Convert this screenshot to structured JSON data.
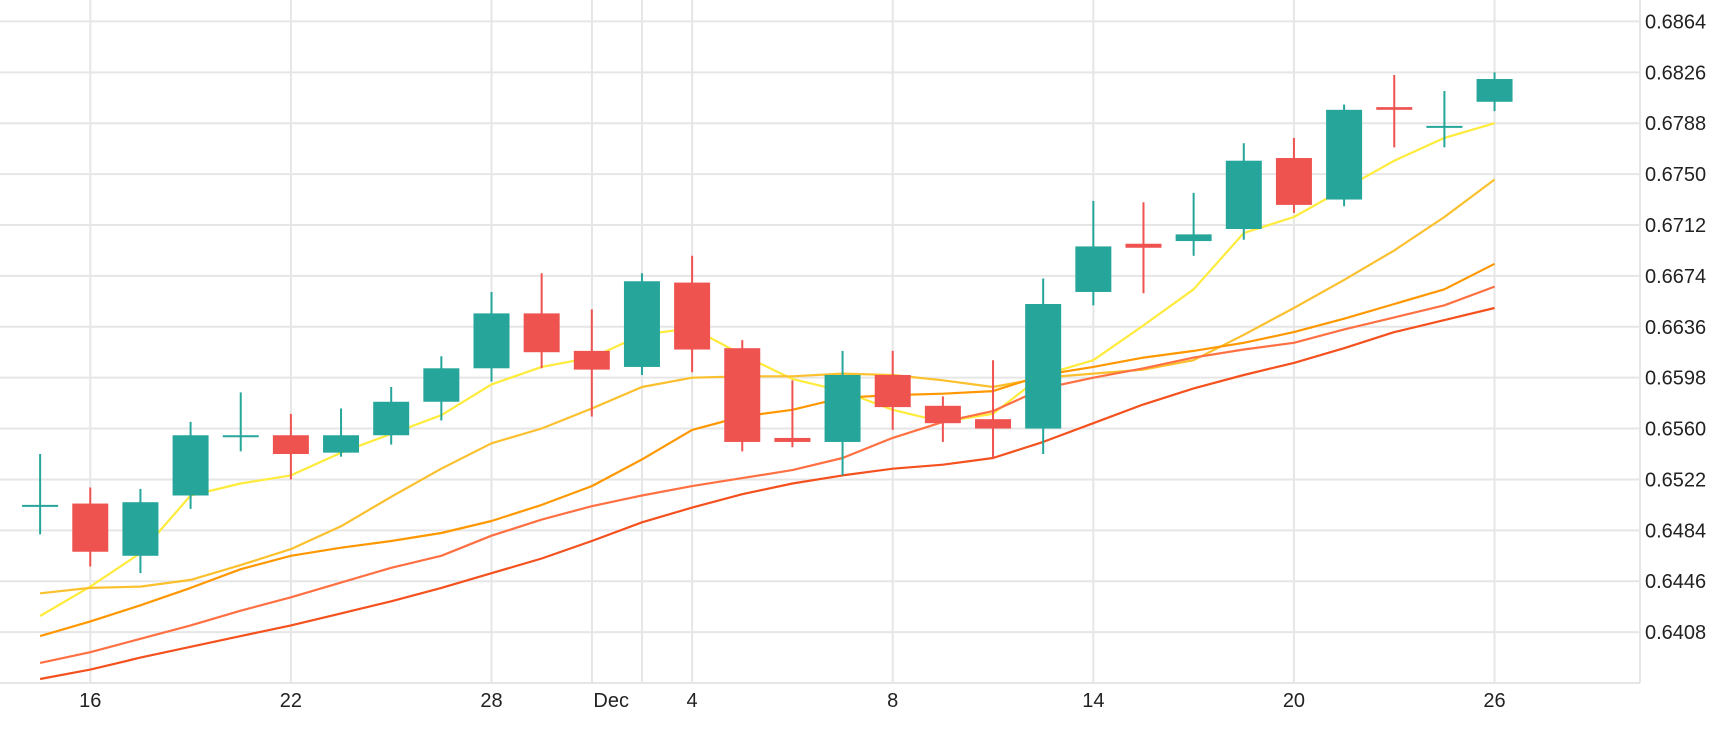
{
  "chart_data": {
    "type": "candlestick",
    "title": "",
    "xlabel": "",
    "ylabel": "",
    "x_range": [
      -0.8,
      31.9
    ],
    "y_range": [
      0.637,
      0.688
    ],
    "grid": true,
    "y_axis_side": "right",
    "y_ticks": [
      "0.6408",
      "0.6446",
      "0.6484",
      "0.6522",
      "0.6560",
      "0.6598",
      "0.6636",
      "0.6674",
      "0.6712",
      "0.6750",
      "0.6788",
      "0.6826",
      "0.6864"
    ],
    "x_ticks": [
      {
        "index": 1,
        "label": "16"
      },
      {
        "index": 5,
        "label": "22"
      },
      {
        "index": 9,
        "label": "28"
      },
      {
        "index": 12,
        "label": "Dec"
      },
      {
        "index": 13,
        "label": "4"
      },
      {
        "index": 17,
        "label": "8"
      },
      {
        "index": 21,
        "label": "14"
      },
      {
        "index": 25,
        "label": "20"
      },
      {
        "index": 29,
        "label": "26"
      }
    ],
    "colors": {
      "up": "#26a69a",
      "down": "#ef5350",
      "grid": "#e6e6e6",
      "text": "#222222"
    },
    "candles": [
      {
        "i": 0,
        "o": 0.6503,
        "h": 0.6541,
        "l": 0.6481,
        "c": 0.6503
      },
      {
        "i": 1,
        "o": 0.6504,
        "h": 0.6516,
        "l": 0.6457,
        "c": 0.6468
      },
      {
        "i": 2,
        "o": 0.6465,
        "h": 0.6515,
        "l": 0.6452,
        "c": 0.6505
      },
      {
        "i": 3,
        "o": 0.651,
        "h": 0.6565,
        "l": 0.65,
        "c": 0.6555
      },
      {
        "i": 4,
        "o": 0.6555,
        "h": 0.6587,
        "l": 0.6543,
        "c": 0.6555
      },
      {
        "i": 5,
        "o": 0.6555,
        "h": 0.6571,
        "l": 0.6522,
        "c": 0.6541
      },
      {
        "i": 6,
        "o": 0.6542,
        "h": 0.6575,
        "l": 0.6539,
        "c": 0.6555
      },
      {
        "i": 7,
        "o": 0.6555,
        "h": 0.6591,
        "l": 0.6548,
        "c": 0.658
      },
      {
        "i": 8,
        "o": 0.658,
        "h": 0.6614,
        "l": 0.6566,
        "c": 0.6605
      },
      {
        "i": 9,
        "o": 0.6605,
        "h": 0.6662,
        "l": 0.6595,
        "c": 0.6646
      },
      {
        "i": 10,
        "o": 0.6646,
        "h": 0.6676,
        "l": 0.6605,
        "c": 0.6617
      },
      {
        "i": 11,
        "o": 0.6618,
        "h": 0.6649,
        "l": 0.6569,
        "c": 0.6604
      },
      {
        "i": 12,
        "o": 0.6606,
        "h": 0.6676,
        "l": 0.66,
        "c": 0.667
      },
      {
        "i": 13,
        "o": 0.6669,
        "h": 0.6689,
        "l": 0.6602,
        "c": 0.6619
      },
      {
        "i": 14,
        "o": 0.662,
        "h": 0.6626,
        "l": 0.6543,
        "c": 0.655
      },
      {
        "i": 15,
        "o": 0.6553,
        "h": 0.6596,
        "l": 0.6546,
        "c": 0.655
      },
      {
        "i": 16,
        "o": 0.655,
        "h": 0.6618,
        "l": 0.6525,
        "c": 0.66
      },
      {
        "i": 17,
        "o": 0.66,
        "h": 0.6618,
        "l": 0.6559,
        "c": 0.6576
      },
      {
        "i": 18,
        "o": 0.6577,
        "h": 0.6584,
        "l": 0.655,
        "c": 0.6564
      },
      {
        "i": 19,
        "o": 0.6567,
        "h": 0.6611,
        "l": 0.6538,
        "c": 0.656
      },
      {
        "i": 20,
        "o": 0.656,
        "h": 0.6672,
        "l": 0.6541,
        "c": 0.6653
      },
      {
        "i": 21,
        "o": 0.6662,
        "h": 0.673,
        "l": 0.6652,
        "c": 0.6696
      },
      {
        "i": 22,
        "o": 0.6698,
        "h": 0.6729,
        "l": 0.6661,
        "c": 0.6695
      },
      {
        "i": 23,
        "o": 0.67,
        "h": 0.6736,
        "l": 0.6689,
        "c": 0.6705
      },
      {
        "i": 24,
        "o": 0.6709,
        "h": 0.6773,
        "l": 0.6701,
        "c": 0.676
      },
      {
        "i": 25,
        "o": 0.6762,
        "h": 0.6777,
        "l": 0.6721,
        "c": 0.6727
      },
      {
        "i": 26,
        "o": 0.6731,
        "h": 0.6802,
        "l": 0.6726,
        "c": 0.6798
      },
      {
        "i": 27,
        "o": 0.68,
        "h": 0.6824,
        "l": 0.677,
        "c": 0.6798
      },
      {
        "i": 28,
        "o": 0.6786,
        "h": 0.6812,
        "l": 0.677,
        "c": 0.6786
      },
      {
        "i": 29,
        "o": 0.6804,
        "h": 0.6826,
        "l": 0.6797,
        "c": 0.6821
      }
    ],
    "moving_averages": [
      {
        "color": "#ffeb3b",
        "points": [
          [
            0,
            0.642
          ],
          [
            1,
            0.6442
          ],
          [
            2,
            0.6467
          ],
          [
            3,
            0.651
          ],
          [
            4,
            0.6519
          ],
          [
            5,
            0.6525
          ],
          [
            6,
            0.6542
          ],
          [
            7,
            0.6556
          ],
          [
            8,
            0.657
          ],
          [
            9,
            0.6593
          ],
          [
            10,
            0.6606
          ],
          [
            11,
            0.6613
          ],
          [
            12,
            0.663
          ],
          [
            13,
            0.6635
          ],
          [
            14,
            0.6615
          ],
          [
            15,
            0.6597
          ],
          [
            16,
            0.6588
          ],
          [
            17,
            0.6574
          ],
          [
            18,
            0.6565
          ],
          [
            19,
            0.6571
          ],
          [
            20,
            0.66
          ],
          [
            21,
            0.6611
          ],
          [
            22,
            0.6637
          ],
          [
            23,
            0.6664
          ],
          [
            24,
            0.6706
          ],
          [
            25,
            0.6718
          ],
          [
            26,
            0.6739
          ],
          [
            27,
            0.676
          ],
          [
            28,
            0.6777
          ],
          [
            29,
            0.6788
          ]
        ]
      },
      {
        "color": "#fbc02d",
        "points": [
          [
            0,
            0.6437
          ],
          [
            1,
            0.6441
          ],
          [
            2,
            0.6442
          ],
          [
            3,
            0.6447
          ],
          [
            4,
            0.6458
          ],
          [
            5,
            0.647
          ],
          [
            6,
            0.6487
          ],
          [
            7,
            0.6509
          ],
          [
            8,
            0.653
          ],
          [
            9,
            0.6549
          ],
          [
            10,
            0.656
          ],
          [
            11,
            0.6575
          ],
          [
            12,
            0.6591
          ],
          [
            13,
            0.6598
          ],
          [
            14,
            0.6599
          ],
          [
            15,
            0.6599
          ],
          [
            16,
            0.6601
          ],
          [
            17,
            0.66
          ],
          [
            18,
            0.6596
          ],
          [
            19,
            0.6591
          ],
          [
            20,
            0.6598
          ],
          [
            21,
            0.6601
          ],
          [
            22,
            0.6604
          ],
          [
            23,
            0.6611
          ],
          [
            24,
            0.663
          ],
          [
            25,
            0.665
          ],
          [
            26,
            0.6671
          ],
          [
            27,
            0.6693
          ],
          [
            28,
            0.6718
          ],
          [
            29,
            0.6746
          ]
        ]
      },
      {
        "color": "#ff9800",
        "points": [
          [
            0,
            0.6405
          ],
          [
            1,
            0.6416
          ],
          [
            2,
            0.6428
          ],
          [
            3,
            0.6441
          ],
          [
            4,
            0.6455
          ],
          [
            5,
            0.6465
          ],
          [
            6,
            0.6471
          ],
          [
            7,
            0.6476
          ],
          [
            8,
            0.6482
          ],
          [
            9,
            0.6491
          ],
          [
            10,
            0.6503
          ],
          [
            11,
            0.6517
          ],
          [
            12,
            0.6537
          ],
          [
            13,
            0.6559
          ],
          [
            14,
            0.6569
          ],
          [
            15,
            0.6574
          ],
          [
            16,
            0.6583
          ],
          [
            17,
            0.6585
          ],
          [
            18,
            0.6586
          ],
          [
            19,
            0.6588
          ],
          [
            20,
            0.66
          ],
          [
            21,
            0.6606
          ],
          [
            22,
            0.6613
          ],
          [
            23,
            0.6618
          ],
          [
            24,
            0.6624
          ],
          [
            25,
            0.6632
          ],
          [
            26,
            0.6642
          ],
          [
            27,
            0.6653
          ],
          [
            28,
            0.6664
          ],
          [
            29,
            0.6683
          ]
        ]
      },
      {
        "color": "#ff7043",
        "points": [
          [
            0,
            0.6385
          ],
          [
            1,
            0.6393
          ],
          [
            2,
            0.6403
          ],
          [
            3,
            0.6413
          ],
          [
            4,
            0.6424
          ],
          [
            5,
            0.6434
          ],
          [
            6,
            0.6445
          ],
          [
            7,
            0.6456
          ],
          [
            8,
            0.6465
          ],
          [
            9,
            0.648
          ],
          [
            10,
            0.6492
          ],
          [
            11,
            0.6502
          ],
          [
            12,
            0.651
          ],
          [
            13,
            0.6517
          ],
          [
            14,
            0.6523
          ],
          [
            15,
            0.6529
          ],
          [
            16,
            0.6538
          ],
          [
            17,
            0.6553
          ],
          [
            18,
            0.6565
          ],
          [
            19,
            0.6573
          ],
          [
            20,
            0.659
          ],
          [
            21,
            0.6598
          ],
          [
            22,
            0.6605
          ],
          [
            23,
            0.6613
          ],
          [
            24,
            0.6619
          ],
          [
            25,
            0.6624
          ],
          [
            26,
            0.6634
          ],
          [
            27,
            0.6643
          ],
          [
            28,
            0.6652
          ],
          [
            29,
            0.6666
          ]
        ]
      },
      {
        "color": "#f4511e",
        "points": [
          [
            0,
            0.6373
          ],
          [
            1,
            0.638
          ],
          [
            2,
            0.6389
          ],
          [
            3,
            0.6397
          ],
          [
            4,
            0.6405
          ],
          [
            5,
            0.6413
          ],
          [
            6,
            0.6422
          ],
          [
            7,
            0.6431
          ],
          [
            8,
            0.6441
          ],
          [
            9,
            0.6452
          ],
          [
            10,
            0.6463
          ],
          [
            11,
            0.6476
          ],
          [
            12,
            0.649
          ],
          [
            13,
            0.6501
          ],
          [
            14,
            0.6511
          ],
          [
            15,
            0.6519
          ],
          [
            16,
            0.6525
          ],
          [
            17,
            0.653
          ],
          [
            18,
            0.6533
          ],
          [
            19,
            0.6538
          ],
          [
            20,
            0.655
          ],
          [
            21,
            0.6564
          ],
          [
            22,
            0.6578
          ],
          [
            23,
            0.659
          ],
          [
            24,
            0.66
          ],
          [
            25,
            0.6609
          ],
          [
            26,
            0.662
          ],
          [
            27,
            0.6632
          ],
          [
            28,
            0.6641
          ],
          [
            29,
            0.665
          ]
        ]
      }
    ]
  }
}
